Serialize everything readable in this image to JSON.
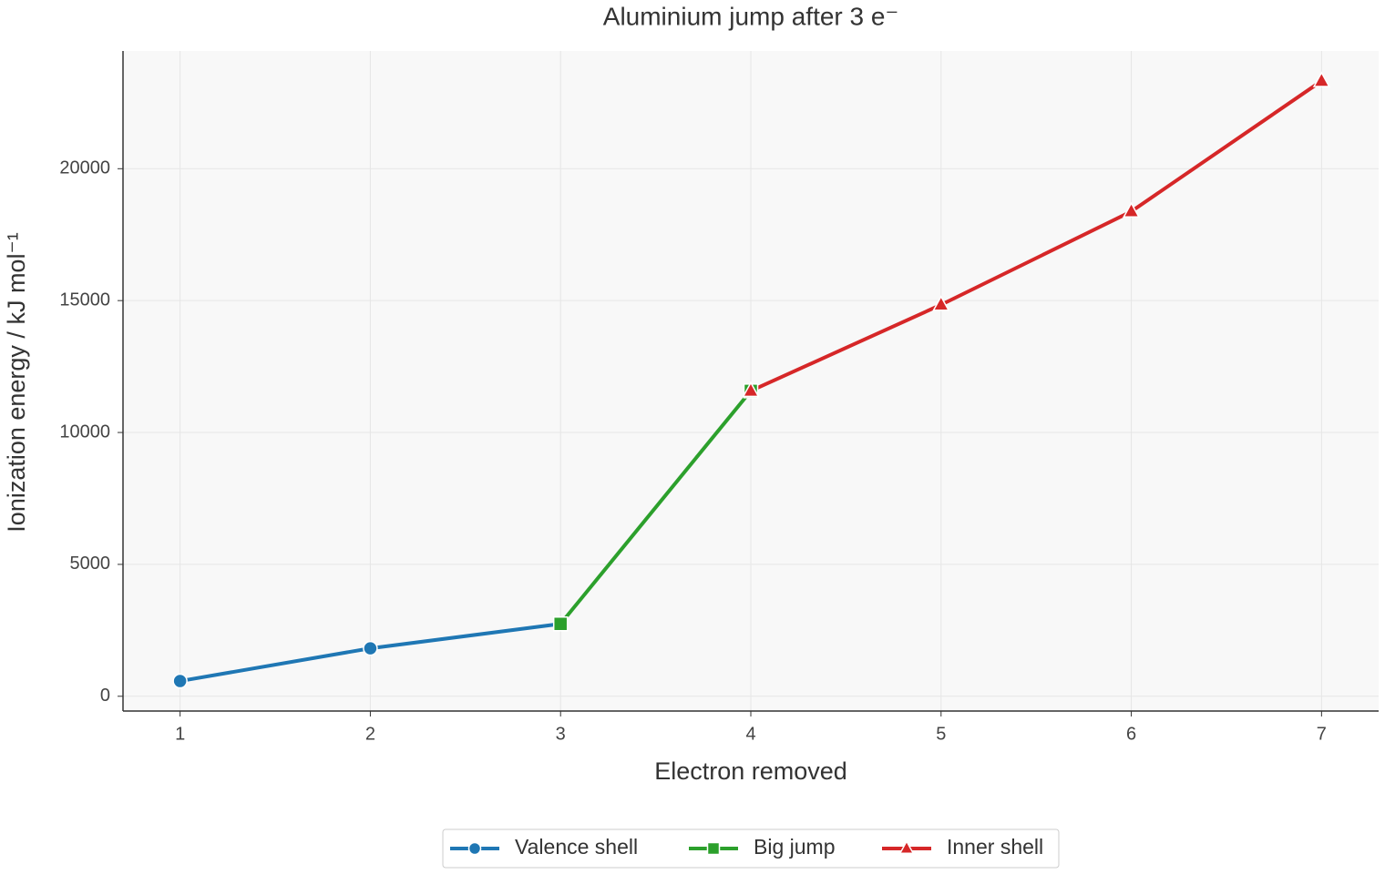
{
  "chart_data": {
    "type": "line",
    "title": "Aluminium jump after 3 e⁻",
    "x_label": "Electron removed",
    "y_label": "Ionization energy / kJ mol⁻¹",
    "series": [
      {
        "name": "Valence shell",
        "color": "#1f77b4",
        "marker": "circle",
        "x": [
          1,
          2,
          3
        ],
        "values": [
          577.5,
          1816.7,
          2744.8
        ]
      },
      {
        "name": "Big jump",
        "color": "#2ca02c",
        "marker": "square",
        "x": [
          3,
          4
        ],
        "values": [
          2744.8,
          11577
        ]
      },
      {
        "name": "Inner shell",
        "color": "#d62728",
        "marker": "triangle",
        "x": [
          4,
          5,
          6,
          7
        ],
        "values": [
          11577,
          14842,
          18379,
          23326
        ]
      }
    ],
    "xlim": [
      0.7,
      7.3
    ],
    "xticks": [
      1,
      2,
      3,
      4,
      5,
      6,
      7
    ],
    "ylim": [
      -560,
      24463
    ],
    "yticks": [
      0,
      5000,
      10000,
      15000,
      20000
    ],
    "grid": true,
    "legend": "bottom"
  }
}
